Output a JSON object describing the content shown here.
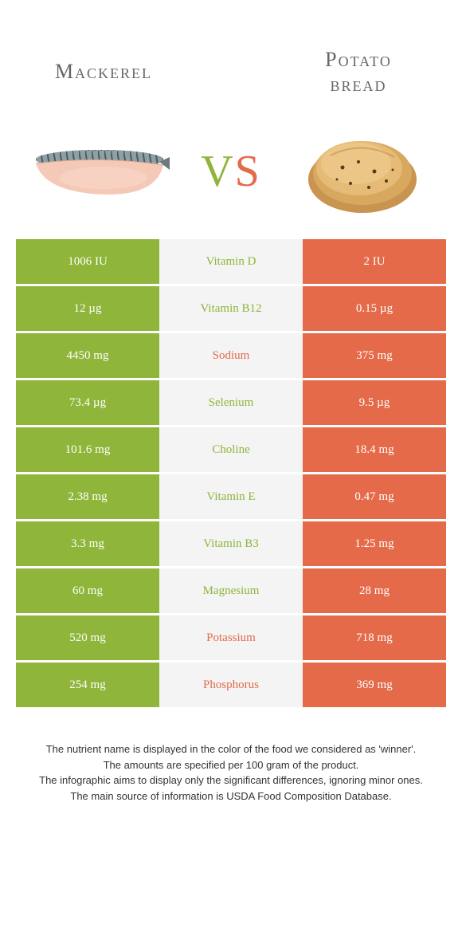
{
  "header": {
    "left_title": "Mackerel",
    "right_title_line1": "Potato",
    "right_title_line2": "bread",
    "vs_v": "V",
    "vs_s": "S"
  },
  "colors": {
    "left": "#8fb53a",
    "right": "#e46a4a",
    "mid_bg": "#f4f4f4",
    "cell_text": "#ffffff"
  },
  "rows": [
    {
      "left": "1006 IU",
      "nutrient": "Vitamin D",
      "right": "2 IU",
      "winner": "left"
    },
    {
      "left": "12 µg",
      "nutrient": "Vitamin B12",
      "right": "0.15 µg",
      "winner": "left"
    },
    {
      "left": "4450 mg",
      "nutrient": "Sodium",
      "right": "375 mg",
      "winner": "right"
    },
    {
      "left": "73.4 µg",
      "nutrient": "Selenium",
      "right": "9.5 µg",
      "winner": "left"
    },
    {
      "left": "101.6 mg",
      "nutrient": "Choline",
      "right": "18.4 mg",
      "winner": "left"
    },
    {
      "left": "2.38 mg",
      "nutrient": "Vitamin E",
      "right": "0.47 mg",
      "winner": "left"
    },
    {
      "left": "3.3 mg",
      "nutrient": "Vitamin B3",
      "right": "1.25 mg",
      "winner": "left"
    },
    {
      "left": "60 mg",
      "nutrient": "Magnesium",
      "right": "28 mg",
      "winner": "left"
    },
    {
      "left": "520 mg",
      "nutrient": "Potassium",
      "right": "718 mg",
      "winner": "right"
    },
    {
      "left": "254 mg",
      "nutrient": "Phosphorus",
      "right": "369 mg",
      "winner": "right"
    }
  ],
  "footer": {
    "line1": "The nutrient name is displayed in the color of the food we considered as 'winner'.",
    "line2": "The amounts are specified per 100 gram of the product.",
    "line3": "The infographic aims to display only the significant differences, ignoring minor ones.",
    "line4": "The main source of information is USDA Food Composition Database."
  }
}
